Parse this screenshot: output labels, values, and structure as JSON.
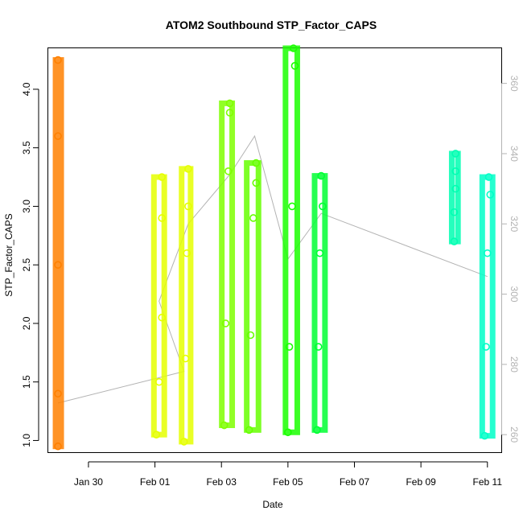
{
  "chart_data": {
    "type": "scatter",
    "title": "ATOM2 Southbound STP_Factor_CAPS",
    "xlabel": "Date",
    "ylabel": "STP_Factor_CAPS",
    "x_type": "date",
    "x_range": [
      "2023-01-28T19:00",
      "2023-02-11T10:00"
    ],
    "x_ticks": [
      {
        "value": "2023-01-30",
        "label": "Jan 30"
      },
      {
        "value": "2023-02-01",
        "label": "Feb 01"
      },
      {
        "value": "2023-02-03",
        "label": "Feb 03"
      },
      {
        "value": "2023-02-05",
        "label": "Feb 05"
      },
      {
        "value": "2023-02-07",
        "label": "Feb 07"
      },
      {
        "value": "2023-02-09",
        "label": "Feb 09"
      },
      {
        "value": "2023-02-11",
        "label": "Feb 11"
      }
    ],
    "ylim": [
      0.9,
      4.35
    ],
    "y_ticks": [
      "1.0",
      "1.5",
      "2.0",
      "2.5",
      "3.0",
      "3.5",
      "4.0"
    ],
    "y2lim": [
      255,
      370
    ],
    "y2_ticks": [
      "260",
      "280",
      "300",
      "320",
      "340",
      "360"
    ],
    "grid": false,
    "series": [
      {
        "color": "#FF8000",
        "x": [
          "2023-01-29T02:00",
          "2023-01-29T02:00",
          "2023-01-29T02:00",
          "2023-01-29T02:00",
          "2023-01-29T02:00"
        ],
        "y": [
          0.95,
          1.4,
          2.5,
          3.6,
          4.25
        ]
      },
      {
        "color": "#E5FF00",
        "x": [
          "2023-02-01T01:00",
          "2023-02-01T03:00",
          "2023-02-01T05:00",
          "2023-02-01T05:00",
          "2023-02-01T05:00"
        ],
        "y": [
          1.05,
          1.5,
          2.9,
          3.25,
          2.05
        ]
      },
      {
        "color": "#E5FF00",
        "x": [
          "2023-02-01T21:00",
          "2023-02-01T22:00",
          "2023-02-01T23:00",
          "2023-02-02T00:00",
          "2023-02-02T00:00"
        ],
        "y": [
          0.99,
          1.7,
          2.6,
          3.32,
          3.0
        ]
      },
      {
        "color": "#7FFF00",
        "x": [
          "2023-02-03T02:00",
          "2023-02-03T03:00",
          "2023-02-03T05:00",
          "2023-02-03T06:00",
          "2023-02-03T06:00"
        ],
        "y": [
          1.13,
          2.0,
          3.3,
          3.88,
          3.8
        ]
      },
      {
        "color": "#66FF00",
        "x": [
          "2023-02-03T20:00",
          "2023-02-03T21:00",
          "2023-02-03T23:00",
          "2023-02-04T01:00",
          "2023-02-04T01:00"
        ],
        "y": [
          1.09,
          1.9,
          2.9,
          3.37,
          3.2
        ]
      },
      {
        "color": "#1AFF00",
        "x": [
          "2023-02-05T00:00",
          "2023-02-05T01:00",
          "2023-02-05T03:00",
          "2023-02-05T04:00",
          "2023-02-05T05:00"
        ],
        "y": [
          1.07,
          1.8,
          3.0,
          4.35,
          4.2
        ]
      },
      {
        "color": "#00FF33",
        "x": [
          "2023-02-05T21:00",
          "2023-02-05T22:00",
          "2023-02-05T23:00",
          "2023-02-06T00:00",
          "2023-02-06T01:00"
        ],
        "y": [
          1.09,
          1.8,
          2.6,
          3.26,
          3.0
        ]
      },
      {
        "color": "#00FFB2",
        "x": [
          "2023-02-10T00:00",
          "2023-02-10T00:00",
          "2023-02-10T01:00",
          "2023-02-10T01:00",
          "2023-02-10T01:00"
        ],
        "y": [
          2.7,
          2.95,
          3.15,
          3.45,
          3.3
        ]
      },
      {
        "color": "#00FFC8",
        "x": [
          "2023-02-10T22:00",
          "2023-02-10T23:00",
          "2023-02-11T00:00",
          "2023-02-11T01:00",
          "2023-02-11T02:00"
        ],
        "y": [
          1.04,
          1.8,
          2.6,
          3.25,
          3.1
        ]
      }
    ],
    "secondary_line": {
      "color": "#b3b3b3",
      "x": [
        "2023-01-29T02:00",
        "2023-02-01T21:00",
        "2023-02-01T03:00",
        "2023-02-02T00:00",
        "2023-02-03T06:00",
        "2023-02-04T00:00",
        "2023-02-05T00:00",
        "2023-02-06T00:00",
        "2023-02-11T00:00"
      ],
      "y": [
        269,
        278,
        298,
        320,
        334,
        345,
        310,
        323,
        305
      ]
    }
  }
}
